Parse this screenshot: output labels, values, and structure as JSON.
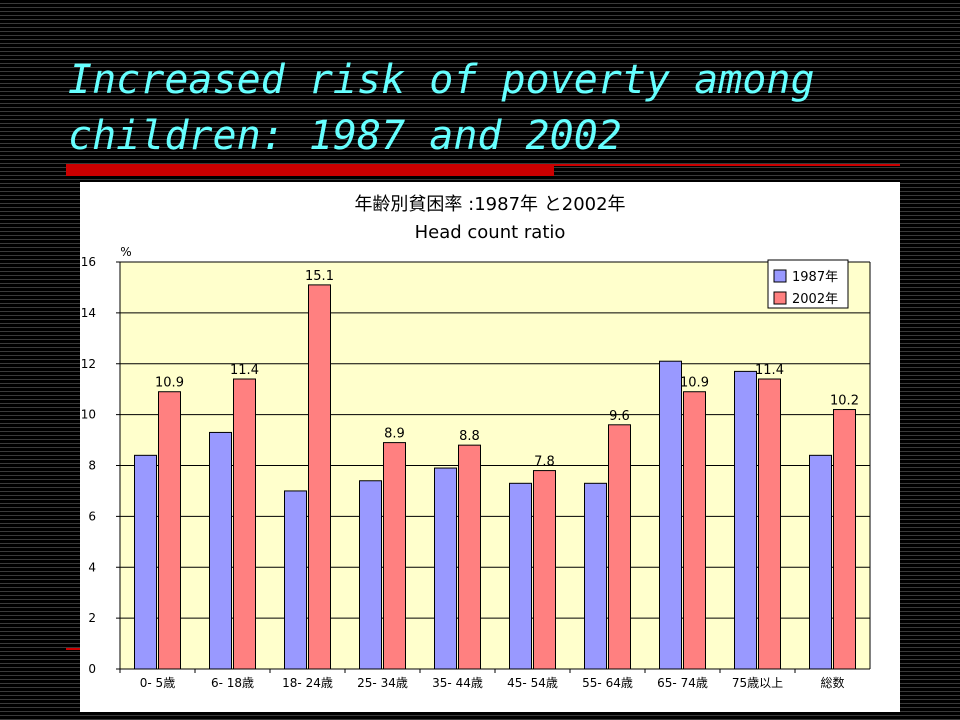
{
  "slide": {
    "title_line1": "Increased risk of poverty among",
    "title_line2": "children: 1987 and 2002"
  },
  "colors": {
    "series_1987": "#9999ff",
    "series_2002": "#ff8080",
    "plot_background": "#ffffcc",
    "title_color": "#66ffff",
    "accent_red": "#cc0000"
  },
  "chart_data": {
    "type": "bar",
    "title": "年齢別貧困率 :1987年 と2002年",
    "subtitle": "Head count ratio",
    "ylabel": "%",
    "xlabel": "",
    "ylim": [
      0,
      16
    ],
    "yticks": [
      0,
      2,
      4,
      6,
      8,
      10,
      12,
      14,
      16
    ],
    "grid": true,
    "legend_position": "top-right",
    "categories": [
      "0- 5歳",
      "6- 18歳",
      "18- 24歳",
      "25- 34歳",
      "35- 44歳",
      "45- 54歳",
      "55- 64歳",
      "65- 74歳",
      "75歳以上",
      "総数"
    ],
    "series": [
      {
        "name": "1987年",
        "values": [
          8.4,
          9.3,
          7.0,
          7.4,
          7.9,
          7.3,
          7.3,
          12.1,
          11.7,
          8.4
        ]
      },
      {
        "name": "2002年",
        "values": [
          10.9,
          11.4,
          15.1,
          8.9,
          8.8,
          7.8,
          9.6,
          10.9,
          11.4,
          10.2
        ]
      }
    ],
    "data_labels": [
      "10.9",
      "11.4",
      "15.1",
      "8.9",
      "8.8",
      "7.8",
      "9.6",
      "10.9",
      "11.4",
      "10.2"
    ]
  }
}
